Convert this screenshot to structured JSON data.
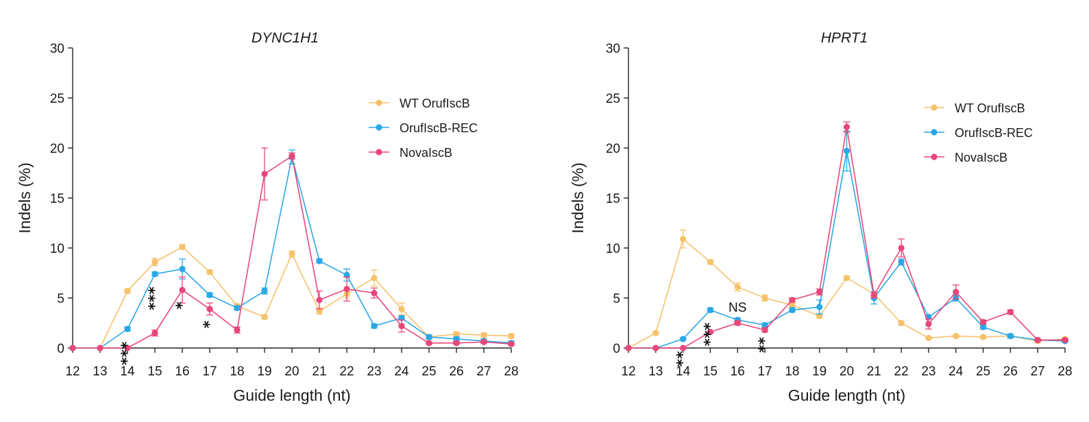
{
  "chart_data": [
    {
      "type": "line",
      "title": "DYNC1H1",
      "xlabel": "Guide length (nt)",
      "ylabel": "Indels (%)",
      "x": [
        12,
        13,
        14,
        15,
        16,
        17,
        18,
        19,
        20,
        21,
        22,
        23,
        24,
        25,
        26,
        27,
        28
      ],
      "xlim": [
        12,
        28
      ],
      "ylim": [
        0,
        30
      ],
      "yticks": [
        0,
        5,
        10,
        15,
        20,
        25,
        30
      ],
      "legend": "top-right",
      "series": [
        {
          "name": "WT OrufIscB",
          "color": "#f5c26b",
          "values": [
            0,
            0,
            5.7,
            8.6,
            10.1,
            7.6,
            4.2,
            3.1,
            9.4,
            3.7,
            5.4,
            7.0,
            3.9,
            1.1,
            1.4,
            1.3,
            1.2
          ],
          "errors": [
            0,
            0,
            0.2,
            0.35,
            0.2,
            0.2,
            0.2,
            0.2,
            0.3,
            0.3,
            0.4,
            0.8,
            0.6,
            0.2,
            0.2,
            0.2,
            0.2
          ]
        },
        {
          "name": "OrufIscB-REC",
          "color": "#2aa7e6",
          "values": [
            0,
            0,
            1.9,
            7.4,
            7.9,
            5.3,
            4.0,
            5.7,
            19.1,
            8.7,
            7.3,
            2.2,
            3.0,
            1.1,
            0.9,
            0.7,
            0.5
          ],
          "errors": [
            0,
            0,
            0.2,
            0.2,
            1.0,
            0.2,
            0.2,
            0.3,
            0.7,
            0.2,
            0.6,
            0.2,
            0.2,
            0.2,
            0.2,
            0.2,
            0.2
          ]
        },
        {
          "name": "NovaIscB",
          "color": "#e8477a",
          "values": [
            0,
            0,
            0,
            1.5,
            5.8,
            3.9,
            1.8,
            17.4,
            19.2,
            4.8,
            5.9,
            5.5,
            2.2,
            0.5,
            0.5,
            0.6,
            0.4
          ],
          "errors": [
            0,
            0,
            0,
            0.3,
            1.3,
            0.6,
            0.3,
            2.6,
            0.3,
            0.9,
            1.2,
            0.5,
            0.6,
            0.1,
            0.1,
            0.1,
            0.1
          ]
        }
      ],
      "annotations": [
        {
          "x": 14,
          "y": 1.9,
          "text": "***"
        },
        {
          "x": 15,
          "y": 7.4,
          "text": "***"
        },
        {
          "x": 16,
          "y": 5.8,
          "text": "*"
        },
        {
          "x": 17,
          "y": 3.9,
          "text": "*"
        }
      ]
    },
    {
      "type": "line",
      "title": "HPRT1",
      "xlabel": "Guide length (nt)",
      "ylabel": "Indels (%)",
      "x": [
        12,
        13,
        14,
        15,
        16,
        17,
        18,
        19,
        20,
        21,
        22,
        23,
        24,
        25,
        26,
        27,
        28
      ],
      "xlim": [
        12,
        28
      ],
      "ylim": [
        0,
        30
      ],
      "yticks": [
        0,
        5,
        10,
        15,
        20,
        25,
        30
      ],
      "legend": "top-right",
      "series": [
        {
          "name": "WT OrufIscB",
          "color": "#f5c26b",
          "values": [
            0,
            1.5,
            10.9,
            8.6,
            6.1,
            5.0,
            4.3,
            3.2,
            7.0,
            5.4,
            2.5,
            1.0,
            1.2,
            1.1,
            1.2,
            0.7,
            0.9
          ],
          "errors": [
            0,
            0.1,
            0.9,
            0.2,
            0.4,
            0.3,
            0.2,
            0.2,
            0.2,
            0.2,
            0.2,
            0.1,
            0.1,
            0.1,
            0.2,
            0.1,
            0.1
          ]
        },
        {
          "name": "OrufIscB-REC",
          "color": "#2aa7e6",
          "values": [
            0,
            0,
            0.9,
            3.8,
            2.8,
            2.3,
            3.8,
            4.1,
            19.7,
            5.0,
            8.6,
            3.1,
            5.0,
            2.1,
            1.2,
            0.8,
            0.7
          ],
          "errors": [
            0,
            0,
            0.1,
            0.2,
            0.2,
            0.2,
            0.2,
            0.7,
            2.0,
            0.6,
            0.3,
            0.2,
            0.3,
            0.2,
            0.2,
            0.1,
            0.1
          ]
        },
        {
          "name": "NovaIscB",
          "color": "#e8477a",
          "values": [
            0,
            0,
            0,
            1.6,
            2.5,
            1.8,
            4.8,
            5.6,
            22.1,
            5.3,
            10.0,
            2.4,
            5.6,
            2.6,
            3.6,
            0.8,
            0.8
          ],
          "errors": [
            0,
            0,
            0,
            0.1,
            0.2,
            0.2,
            0.2,
            0.3,
            0.5,
            0.3,
            0.9,
            0.5,
            0.7,
            0.2,
            0.2,
            0.1,
            0.1
          ]
        }
      ],
      "annotations": [
        {
          "x": 14,
          "y": 0.9,
          "text": "**"
        },
        {
          "x": 15,
          "y": 3.8,
          "text": "***"
        },
        {
          "x": 16,
          "y": 2.8,
          "text": "NS"
        },
        {
          "x": 17,
          "y": 2.3,
          "text": "**"
        }
      ]
    }
  ]
}
